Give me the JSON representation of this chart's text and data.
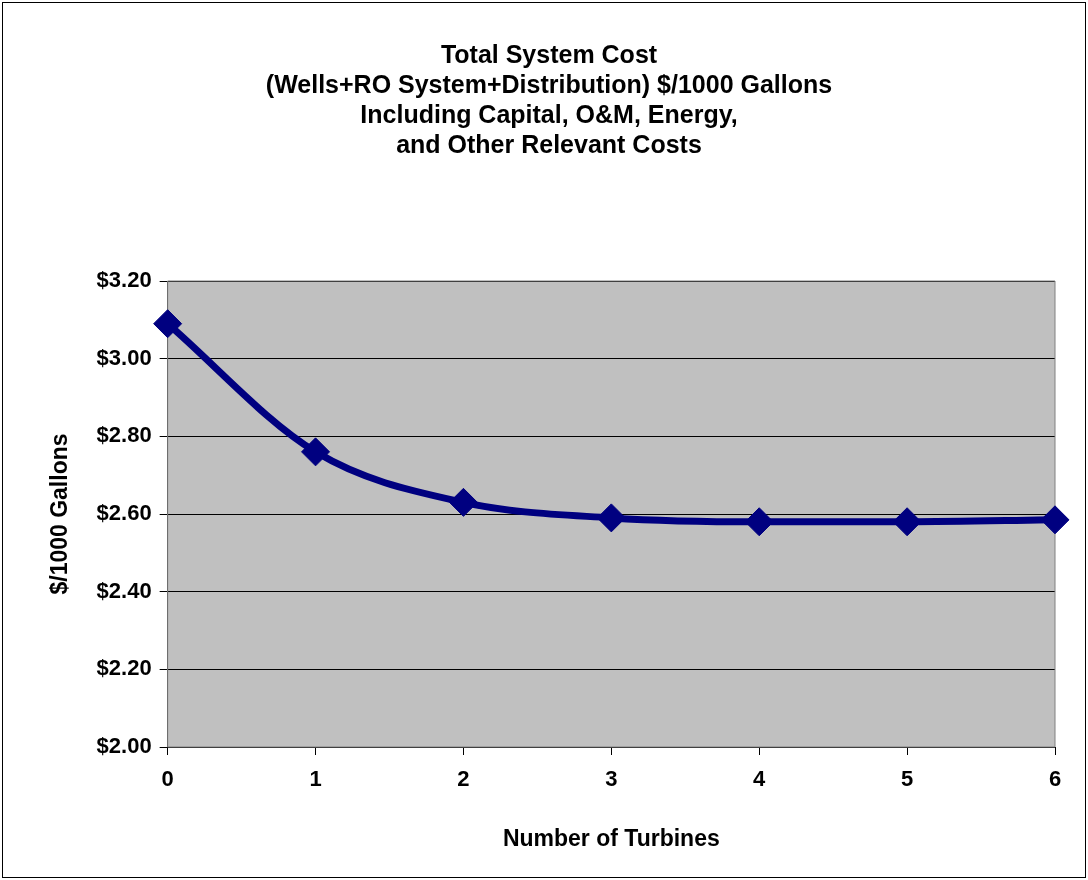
{
  "chart_data": {
    "type": "line",
    "title": "Total System Cost\n(Wells+RO System+Distribution) $/1000 Gallons\nIncluding Capital, O&M, Energy,\nand Other Relevant Costs",
    "xlabel": "Number of Turbines",
    "ylabel": "$/1000 Gallons",
    "x": [
      0,
      1,
      2,
      3,
      4,
      5,
      6
    ],
    "series": [
      {
        "color": "#000080",
        "values": [
          3.09,
          2.76,
          2.63,
          2.59,
          2.58,
          2.58,
          2.585
        ]
      }
    ],
    "xlim": [
      0,
      6
    ],
    "xticks": [
      0,
      1,
      2,
      3,
      4,
      5,
      6
    ],
    "ylim": [
      2.0,
      3.2
    ],
    "yticks": [
      {
        "value": 2.0,
        "label": "$2.00"
      },
      {
        "value": 2.2,
        "label": "$2.20"
      },
      {
        "value": 2.4,
        "label": "$2.40"
      },
      {
        "value": 2.6,
        "label": "$2.60"
      },
      {
        "value": 2.8,
        "label": "$2.80"
      },
      {
        "value": 3.0,
        "label": "$3.00"
      },
      {
        "value": 3.2,
        "label": "$3.20"
      }
    ],
    "grid": "y",
    "marker": "diamond",
    "line_style": "solid",
    "legend": false
  }
}
